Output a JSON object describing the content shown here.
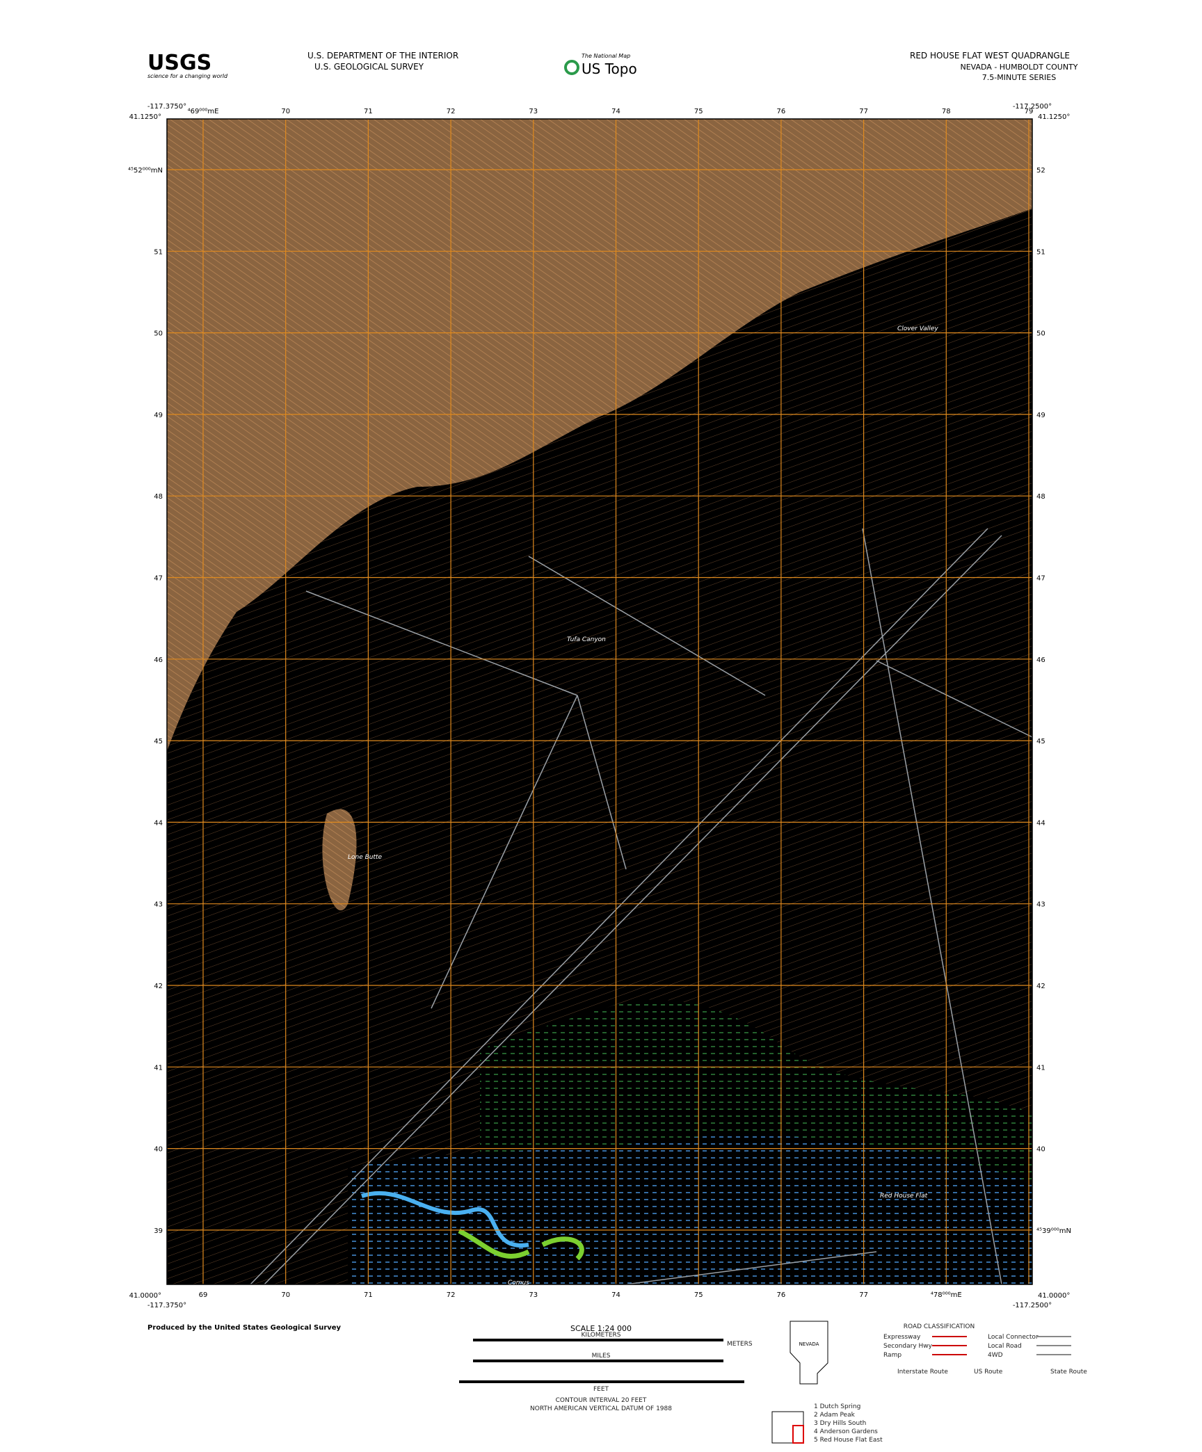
{
  "header": {
    "agency_logo": "USGS",
    "agency_tagline": "science for a changing world",
    "department": "U.S. DEPARTMENT OF THE INTERIOR",
    "survey": "U.S. GEOLOGICAL SURVEY",
    "national_map": "The National Map",
    "product": "US Topo",
    "quad_title": "RED HOUSE FLAT WEST QUADRANGLE",
    "state_county": "NEVADA - HUMBOLDT COUNTY",
    "series": "7.5-MINUTE SERIES"
  },
  "corners": {
    "top_left_lon": "-117.3750°",
    "top_left_lat": "41.1250°",
    "top_right_lon": "-117.2500°",
    "top_right_lat": "41.1250°",
    "bottom_left_lat": "41.0000°",
    "bottom_left_lon": "-117.3750°",
    "bottom_right_lon": "-117.2500°",
    "bottom_right_lat": "41.0000°"
  },
  "grid": {
    "top_labels": [
      "⁴69⁰⁰⁰mE",
      "70",
      "71",
      "72",
      "73",
      "74",
      "75",
      "76",
      "77",
      "78",
      "79"
    ],
    "bottom_labels": [
      "69",
      "70",
      "71",
      "72",
      "73",
      "74",
      "75",
      "76",
      "77",
      "⁴78⁰⁰⁰mE"
    ],
    "left_labels": [
      "⁴⁵52⁰⁰⁰mN",
      "51",
      "50",
      "49",
      "48",
      "47",
      "46",
      "45",
      "44",
      "43",
      "42",
      "41",
      "40",
      "39"
    ],
    "right_labels": [
      "52",
      "51",
      "50",
      "49",
      "48",
      "47",
      "46",
      "45",
      "44",
      "43",
      "42",
      "41",
      "40",
      "⁴⁵39⁰⁰⁰mN"
    ]
  },
  "places": [
    "Clover Valley",
    "Tufa Canyon",
    "Lone Butte",
    "Red House Flat",
    "Comus"
  ],
  "footer": {
    "producer": "Produced by the United States Geological Survey",
    "scale": "SCALE 1:24 000",
    "kilometers": "KILOMETERS",
    "meters": "METERS",
    "miles": "MILES",
    "feet": "FEET",
    "contour": "CONTOUR INTERVAL 20 FEET",
    "datum": "NORTH AMERICAN VERTICAL DATUM OF 1988",
    "road_title": "ROAD CLASSIFICATION",
    "roads": [
      "Expressway",
      "Secondary Hwy",
      "Ramp",
      "Local Connector",
      "Local Road",
      "4WD"
    ],
    "routes": [
      "Interstate Route",
      "US Route",
      "State Route"
    ],
    "state": "NEVADA",
    "adjoining": [
      "1 Dutch Spring",
      "2 Adam Peak",
      "3 Dry Hills South",
      "4 Anderson Gardens",
      "5 Red House Flat East"
    ]
  }
}
